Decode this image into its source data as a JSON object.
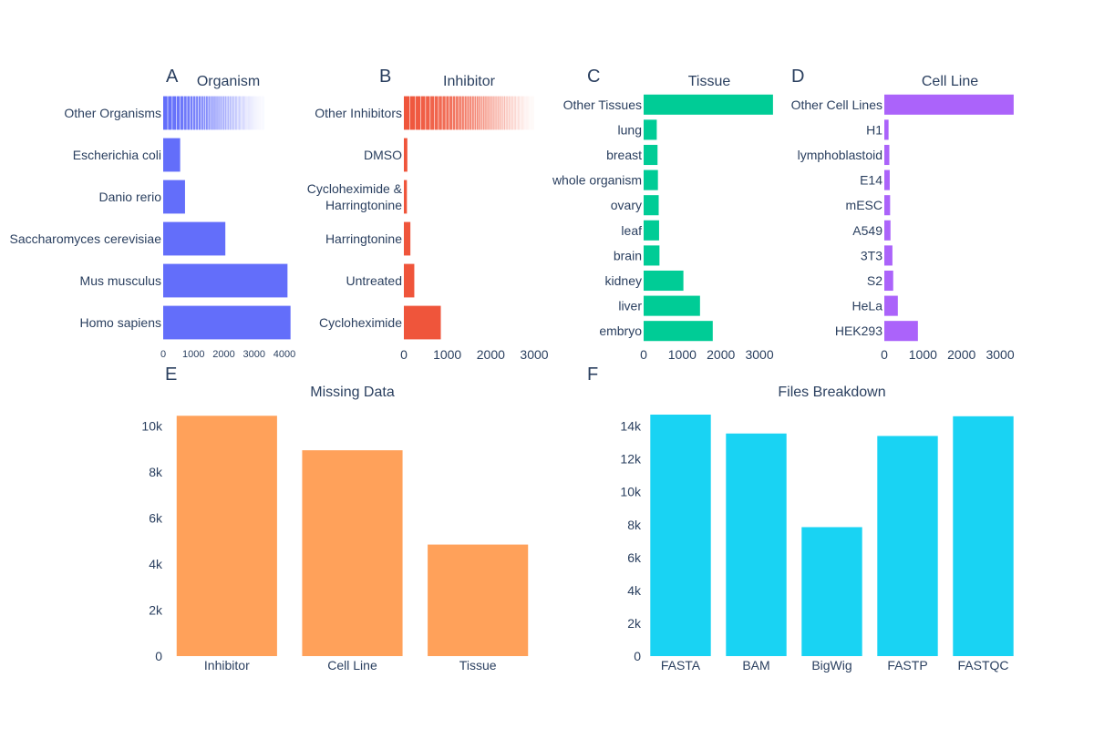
{
  "chart_data": [
    {
      "id": "A",
      "type": "bar",
      "orientation": "h",
      "title": "Organism",
      "color": "#636efa",
      "categories": [
        "Other Organisms",
        "Escherichia coli",
        "Danio rerio",
        "Saccharomyces cerevisiae",
        "Mus musculus",
        "Homo sapiens"
      ],
      "values": [
        3350,
        560,
        720,
        2050,
        4100,
        4200
      ],
      "xlim": [
        0,
        4300
      ],
      "xticks": [
        0,
        1000,
        2000,
        3000,
        4000
      ],
      "stacked_first": true
    },
    {
      "id": "B",
      "type": "bar",
      "orientation": "h",
      "title": "Inhibitor",
      "color": "#ef553b",
      "categories": [
        "Other Inhibitors",
        "DMSO",
        "Cycloheximide & Harringtonine",
        "Harringtonine",
        "Untreated",
        "Cycloheximide"
      ],
      "values": [
        3000,
        80,
        70,
        150,
        240,
        850
      ],
      "xlim": [
        0,
        3000
      ],
      "xticks": [
        0,
        1000,
        2000,
        3000
      ],
      "stacked_first": true
    },
    {
      "id": "C",
      "type": "bar",
      "orientation": "h",
      "title": "Tissue",
      "color": "#00cc96",
      "categories": [
        "Other Tissues",
        "lung",
        "breast",
        "whole organism",
        "ovary",
        "leaf",
        "brain",
        "kidney",
        "liver",
        "embryo"
      ],
      "values": [
        3350,
        340,
        360,
        370,
        390,
        400,
        410,
        1030,
        1460,
        1790
      ],
      "xlim": [
        0,
        3400
      ],
      "xticks": [
        0,
        1000,
        2000,
        3000
      ]
    },
    {
      "id": "D",
      "type": "bar",
      "orientation": "h",
      "title": "Cell Line",
      "color": "#ab63fa",
      "categories": [
        "Other Cell Lines",
        "H1",
        "lymphoblastoid",
        "E14",
        "mESC",
        "A549",
        "3T3",
        "S2",
        "HeLa",
        "HEK293"
      ],
      "values": [
        3350,
        110,
        130,
        140,
        150,
        160,
        210,
        230,
        350,
        870
      ],
      "xlim": [
        0,
        3400
      ],
      "xticks": [
        0,
        1000,
        2000,
        3000
      ]
    },
    {
      "id": "E",
      "type": "bar",
      "orientation": "v",
      "title": "Missing Data",
      "color": "#ffa15a",
      "categories": [
        "Inhibitor",
        "Cell Line",
        "Tissue"
      ],
      "values": [
        10450,
        8950,
        4850
      ],
      "ylim": [
        0,
        10500
      ],
      "yticks": [
        0,
        2000,
        4000,
        6000,
        8000,
        10000
      ],
      "yticklabels": [
        "0",
        "2k",
        "4k",
        "6k",
        "8k",
        "10k"
      ]
    },
    {
      "id": "F",
      "type": "bar",
      "orientation": "v",
      "title": "Files Breakdown",
      "color": "#19d3f3",
      "categories": [
        "FASTA",
        "BAM",
        "BigWig",
        "FASTP",
        "FASTQC"
      ],
      "values": [
        14700,
        13550,
        7850,
        13400,
        14600
      ],
      "ylim": [
        0,
        14700
      ],
      "yticks": [
        0,
        2000,
        4000,
        6000,
        8000,
        10000,
        12000,
        14000
      ],
      "yticklabels": [
        "0",
        "2k",
        "4k",
        "6k",
        "8k",
        "10k",
        "12k",
        "14k"
      ]
    }
  ]
}
